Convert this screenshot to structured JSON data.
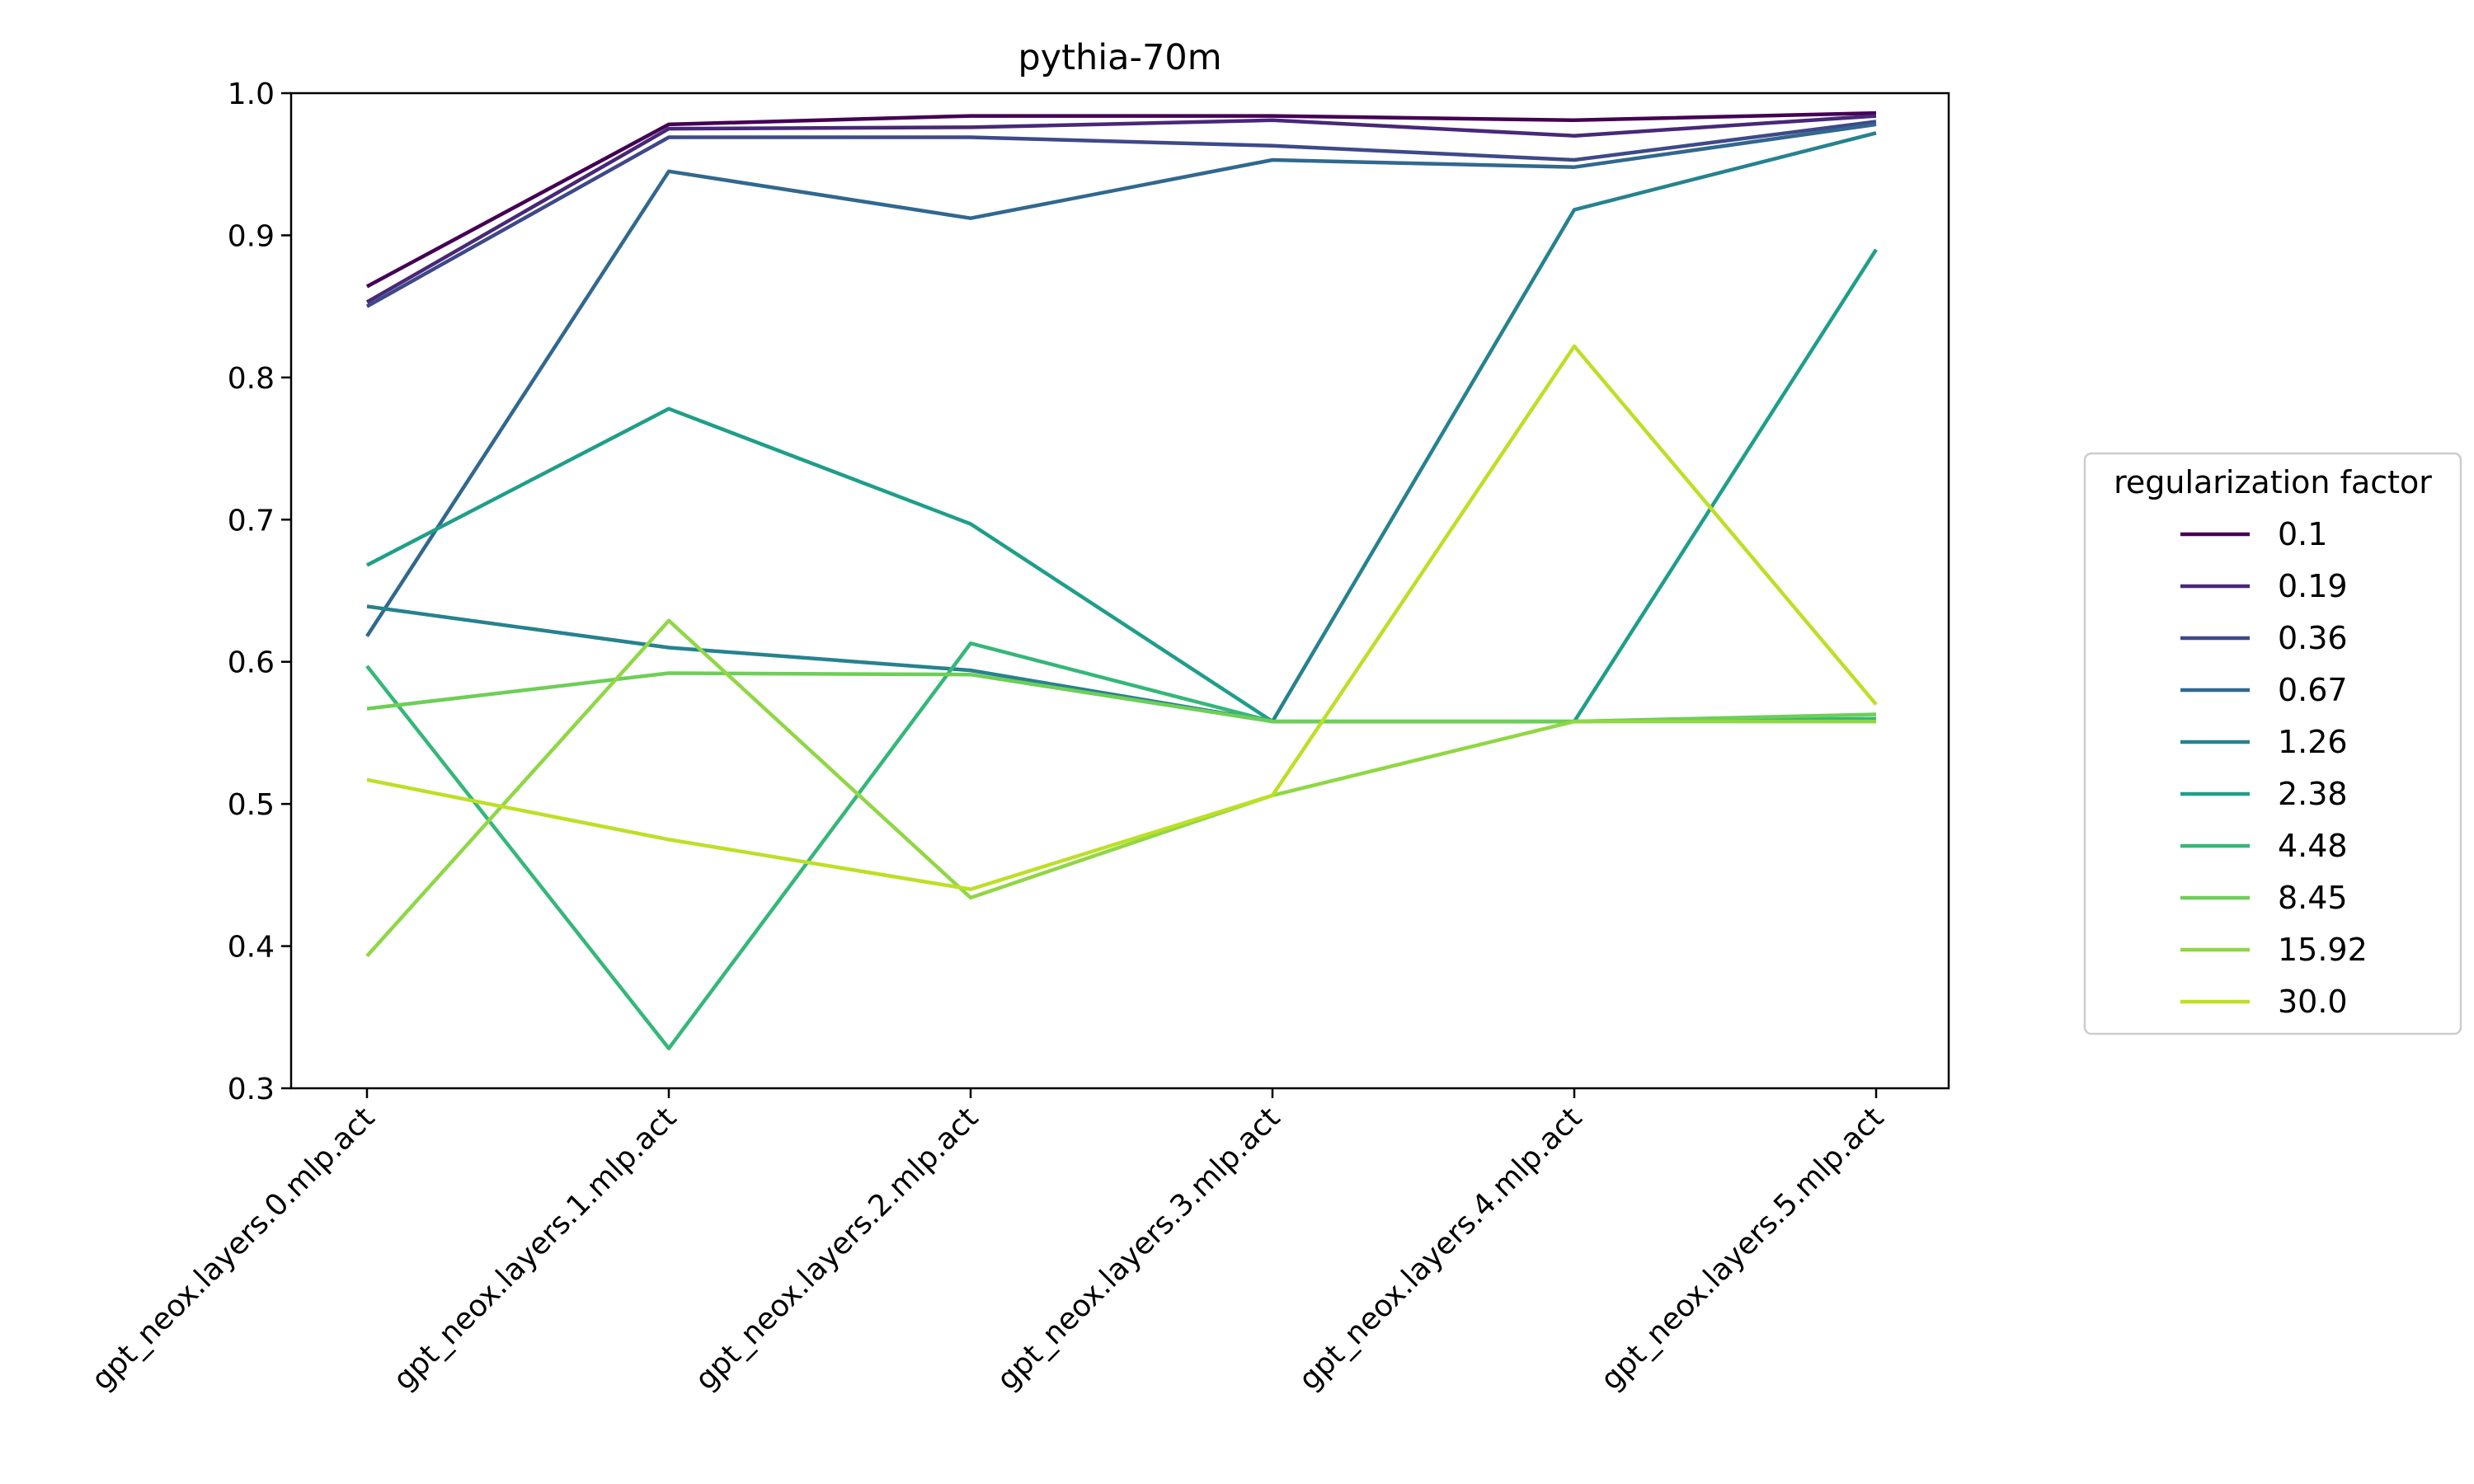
{
  "chart_data": {
    "type": "line",
    "title": "pythia-70m",
    "xlabel": "",
    "ylabel": "",
    "categories": [
      "gpt_neox.layers.0.mlp.act",
      "gpt_neox.layers.1.mlp.act",
      "gpt_neox.layers.2.mlp.act",
      "gpt_neox.layers.3.mlp.act",
      "gpt_neox.layers.4.mlp.act",
      "gpt_neox.layers.5.mlp.act"
    ],
    "ylim": [
      0.3,
      1.0
    ],
    "yticks": [
      "0.3",
      "0.4",
      "0.5",
      "0.6",
      "0.7",
      "0.8",
      "0.9",
      "1.0"
    ],
    "grid": false,
    "legend": {
      "title": "regularization factor",
      "placement": "outside-right"
    },
    "series": [
      {
        "name": "0.1",
        "color": "#440154",
        "values": [
          0.864,
          0.978,
          0.984,
          0.984,
          0.981,
          0.986
        ]
      },
      {
        "name": "0.19",
        "color": "#482878",
        "values": [
          0.853,
          0.975,
          0.976,
          0.981,
          0.97,
          0.984
        ]
      },
      {
        "name": "0.36",
        "color": "#3e4989",
        "values": [
          0.85,
          0.969,
          0.969,
          0.963,
          0.953,
          0.98
        ]
      },
      {
        "name": "0.67",
        "color": "#31688e",
        "values": [
          0.618,
          0.945,
          0.912,
          0.953,
          0.948,
          0.978
        ]
      },
      {
        "name": "1.26",
        "color": "#26828e",
        "values": [
          0.639,
          0.61,
          0.594,
          0.558,
          0.918,
          0.972
        ]
      },
      {
        "name": "2.38",
        "color": "#1f9e89",
        "values": [
          0.668,
          0.778,
          0.697,
          0.558,
          0.558,
          0.89
        ]
      },
      {
        "name": "4.48",
        "color": "#35b779",
        "values": [
          0.597,
          0.328,
          0.613,
          0.558,
          0.558,
          0.56
        ]
      },
      {
        "name": "8.45",
        "color": "#6ece58",
        "values": [
          0.567,
          0.592,
          0.591,
          0.558,
          0.558,
          0.563
        ]
      },
      {
        "name": "15.92",
        "color": "#8fd744",
        "values": [
          0.393,
          0.629,
          0.434,
          0.506,
          0.558,
          0.558
        ]
      },
      {
        "name": "30.0",
        "color": "#bddf26",
        "values": [
          0.517,
          0.475,
          0.44,
          0.506,
          0.822,
          0.57
        ]
      }
    ]
  }
}
